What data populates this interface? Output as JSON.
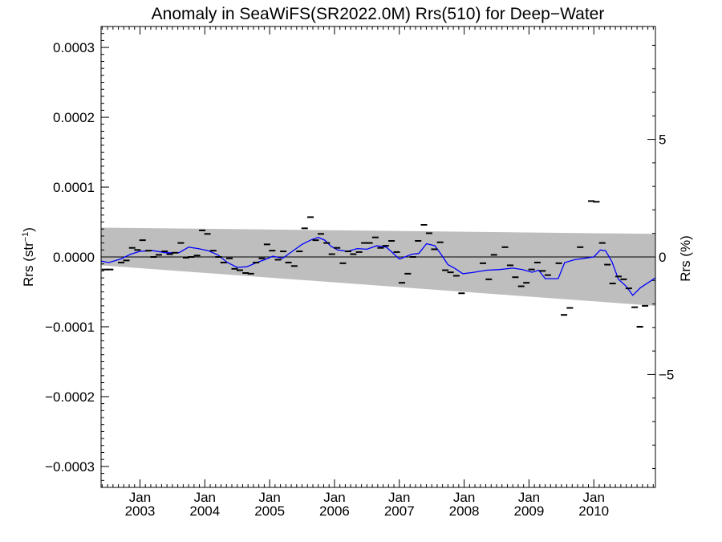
{
  "chart_data": {
    "type": "line",
    "title": "Anomaly in SeaWiFS(SR2022.0M) Rrs(510) for Deep−Water",
    "ylabel_left": "Rrs (str",
    "ylabel_left_sup": "−1",
    "ylabel_left_close": ")",
    "ylabel_right": "Rrs (%)",
    "x_range": [
      2002.4,
      2010.95
    ],
    "y_left_range": [
      -0.00033,
      0.00033
    ],
    "y_right_range": [
      -9.8,
      9.8
    ],
    "grid": false,
    "y_left_ticks": [
      {
        "value": 0.0003,
        "label": "0.0003"
      },
      {
        "value": 0.0002,
        "label": "0.0002"
      },
      {
        "value": 0.0001,
        "label": "0.0001"
      },
      {
        "value": 0.0,
        "label": "0.0000"
      },
      {
        "value": -0.0001,
        "label": "−0.0001"
      },
      {
        "value": -0.0002,
        "label": "−0.0002"
      },
      {
        "value": -0.0003,
        "label": "−0.0003"
      }
    ],
    "y_right_ticks": [
      {
        "value": 5,
        "label": "5"
      },
      {
        "value": 0,
        "label": "0"
      },
      {
        "value": -5,
        "label": "−5"
      }
    ],
    "x_ticks": [
      {
        "value": 2003.0,
        "month": "Jan",
        "year": "2003"
      },
      {
        "value": 2004.0,
        "month": "Jan",
        "year": "2004"
      },
      {
        "value": 2005.0,
        "month": "Jan",
        "year": "2005"
      },
      {
        "value": 2006.0,
        "month": "Jan",
        "year": "2006"
      },
      {
        "value": 2007.0,
        "month": "Jan",
        "year": "2007"
      },
      {
        "value": 2008.0,
        "month": "Jan",
        "year": "2008"
      },
      {
        "value": 2009.0,
        "month": "Jan",
        "year": "2009"
      },
      {
        "value": 2010.0,
        "month": "Jan",
        "year": "2010"
      }
    ],
    "uncertainty_band": {
      "x": [
        2002.4,
        2010.95
      ],
      "upper": [
        4.2e-05,
        3.3e-05
      ],
      "lower": [
        -1.2e-05,
        -7e-05
      ],
      "color": "#bebebe"
    },
    "monthly_anomalies": {
      "color": "#000000",
      "points": [
        [
          2002.46,
          -1.8e-05
        ],
        [
          2002.54,
          -1.8e-05
        ],
        [
          2002.71,
          -8e-06
        ],
        [
          2002.79,
          -5e-06
        ],
        [
          2002.88,
          1.3e-05
        ],
        [
          2002.96,
          1e-05
        ],
        [
          2003.04,
          2.4e-05
        ],
        [
          2003.13,
          9e-06
        ],
        [
          2003.21,
          0.0
        ],
        [
          2003.29,
          3e-06
        ],
        [
          2003.38,
          8e-06
        ],
        [
          2003.46,
          4e-06
        ],
        [
          2003.54,
          6e-06
        ],
        [
          2003.63,
          2e-05
        ],
        [
          2003.71,
          -1e-06
        ],
        [
          2003.79,
          0.0
        ],
        [
          2003.88,
          2e-06
        ],
        [
          2003.96,
          3.8e-05
        ],
        [
          2004.04,
          3.3e-05
        ],
        [
          2004.13,
          9e-06
        ],
        [
          2004.21,
          0.0
        ],
        [
          2004.29,
          -8e-06
        ],
        [
          2004.38,
          -2e-06
        ],
        [
          2004.46,
          -1.7e-05
        ],
        [
          2004.54,
          -1.9e-05
        ],
        [
          2004.63,
          -2.3e-05
        ],
        [
          2004.71,
          -2.4e-05
        ],
        [
          2004.79,
          -8e-06
        ],
        [
          2004.88,
          -2e-06
        ],
        [
          2004.96,
          1.8e-05
        ],
        [
          2005.04,
          9e-06
        ],
        [
          2005.13,
          -4e-06
        ],
        [
          2005.21,
          8e-06
        ],
        [
          2005.29,
          -8e-06
        ],
        [
          2005.38,
          -1.3e-05
        ],
        [
          2005.46,
          8e-06
        ],
        [
          2005.54,
          4.1e-05
        ],
        [
          2005.63,
          5.7e-05
        ],
        [
          2005.71,
          2.4e-05
        ],
        [
          2005.79,
          3.3e-05
        ],
        [
          2005.88,
          2e-05
        ],
        [
          2005.96,
          4e-06
        ],
        [
          2006.04,
          1.3e-05
        ],
        [
          2006.13,
          -9e-06
        ],
        [
          2006.21,
          8e-06
        ],
        [
          2006.29,
          4e-06
        ],
        [
          2006.38,
          7e-06
        ],
        [
          2006.46,
          2e-05
        ],
        [
          2006.54,
          2e-05
        ],
        [
          2006.63,
          2.8e-05
        ],
        [
          2006.71,
          1.3e-05
        ],
        [
          2006.79,
          1.6e-05
        ],
        [
          2006.88,
          2.3e-05
        ],
        [
          2006.96,
          7e-06
        ],
        [
          2007.04,
          -3.7e-05
        ],
        [
          2007.13,
          -2.4e-05
        ],
        [
          2007.21,
          0.0
        ],
        [
          2007.29,
          2.3e-05
        ],
        [
          2007.38,
          4.6e-05
        ],
        [
          2007.46,
          3.4e-05
        ],
        [
          2007.54,
          1.1e-05
        ],
        [
          2007.63,
          2.1e-05
        ],
        [
          2007.71,
          -1.9e-05
        ],
        [
          2007.79,
          -2.2e-05
        ],
        [
          2007.88,
          -2.7e-05
        ],
        [
          2007.96,
          -5.2e-05
        ],
        [
          2008.29,
          -9e-06
        ],
        [
          2008.38,
          -3.2e-05
        ],
        [
          2008.46,
          3e-06
        ],
        [
          2008.63,
          1.4e-05
        ],
        [
          2008.71,
          -1.2e-05
        ],
        [
          2008.79,
          -2.9e-05
        ],
        [
          2008.88,
          -4.2e-05
        ],
        [
          2008.96,
          -3.7e-05
        ],
        [
          2009.04,
          -1.8e-05
        ],
        [
          2009.13,
          -8e-06
        ],
        [
          2009.21,
          -2e-05
        ],
        [
          2009.29,
          -2.6e-05
        ],
        [
          2009.46,
          -9e-06
        ],
        [
          2009.54,
          -8.3e-05
        ],
        [
          2009.63,
          -7.3e-05
        ],
        [
          2009.79,
          1.4e-05
        ],
        [
          2009.96,
          8e-05
        ],
        [
          2010.04,
          7.9e-05
        ],
        [
          2010.13,
          2e-05
        ],
        [
          2010.21,
          -1.1e-05
        ],
        [
          2010.29,
          -3.8e-05
        ],
        [
          2010.38,
          -2.8e-05
        ],
        [
          2010.46,
          -3.2e-05
        ],
        [
          2010.54,
          -4.5e-05
        ],
        [
          2010.63,
          -7.2e-05
        ],
        [
          2010.71,
          -0.0001
        ],
        [
          2010.79,
          -7e-05
        ]
      ]
    },
    "smoothed_series": {
      "color": "#0000ff",
      "points": [
        [
          2002.4,
          -6e-06
        ],
        [
          2002.52,
          -8e-06
        ],
        [
          2002.7,
          -3e-06
        ],
        [
          2002.86,
          4e-06
        ],
        [
          2003.0,
          8e-06
        ],
        [
          2003.2,
          9e-06
        ],
        [
          2003.4,
          6e-06
        ],
        [
          2003.6,
          6e-06
        ],
        [
          2003.75,
          1.4e-05
        ],
        [
          2003.9,
          1.2e-05
        ],
        [
          2004.05,
          9e-06
        ],
        [
          2004.2,
          3e-06
        ],
        [
          2004.35,
          -8e-06
        ],
        [
          2004.5,
          -1.5e-05
        ],
        [
          2004.65,
          -1.4e-05
        ],
        [
          2004.8,
          -8e-06
        ],
        [
          2004.92,
          -4e-06
        ],
        [
          2005.05,
          1e-06
        ],
        [
          2005.2,
          -2e-06
        ],
        [
          2005.35,
          8e-06
        ],
        [
          2005.5,
          1.8e-05
        ],
        [
          2005.65,
          2.5e-05
        ],
        [
          2005.75,
          2.8e-05
        ],
        [
          2005.85,
          2.4e-05
        ],
        [
          2005.95,
          1.5e-05
        ],
        [
          2006.05,
          1e-05
        ],
        [
          2006.2,
          8e-06
        ],
        [
          2006.35,
          1.2e-05
        ],
        [
          2006.5,
          1.1e-05
        ],
        [
          2006.65,
          1.6e-05
        ],
        [
          2006.8,
          1.4e-05
        ],
        [
          2006.92,
          4e-06
        ],
        [
          2007.0,
          -3e-06
        ],
        [
          2007.2,
          4e-06
        ],
        [
          2007.3,
          5e-06
        ],
        [
          2007.42,
          1.9e-05
        ],
        [
          2007.55,
          1.6e-05
        ],
        [
          2007.65,
          3e-06
        ],
        [
          2007.75,
          -1.1e-05
        ],
        [
          2007.85,
          -1.6e-05
        ],
        [
          2007.98,
          -2.4e-05
        ],
        [
          2008.15,
          -2.2e-05
        ],
        [
          2008.35,
          -1.9e-05
        ],
        [
          2008.55,
          -1.8e-05
        ],
        [
          2008.75,
          -1.6e-05
        ],
        [
          2008.9,
          -1.8e-05
        ],
        [
          2009.05,
          -2.2e-05
        ],
        [
          2009.15,
          -1.9e-05
        ],
        [
          2009.25,
          -3.1e-05
        ],
        [
          2009.45,
          -3.1e-05
        ],
        [
          2009.55,
          -8e-06
        ],
        [
          2009.7,
          -4e-06
        ],
        [
          2009.85,
          -2e-06
        ],
        [
          2010.0,
          0.0
        ],
        [
          2010.1,
          1e-05
        ],
        [
          2010.18,
          9e-06
        ],
        [
          2010.28,
          -7e-06
        ],
        [
          2010.38,
          -3.2e-05
        ],
        [
          2010.5,
          -4.2e-05
        ],
        [
          2010.6,
          -5.5e-05
        ],
        [
          2010.72,
          -4.4e-05
        ],
        [
          2010.9,
          -3.3e-05
        ],
        [
          2010.95,
          -3e-05
        ]
      ]
    }
  }
}
